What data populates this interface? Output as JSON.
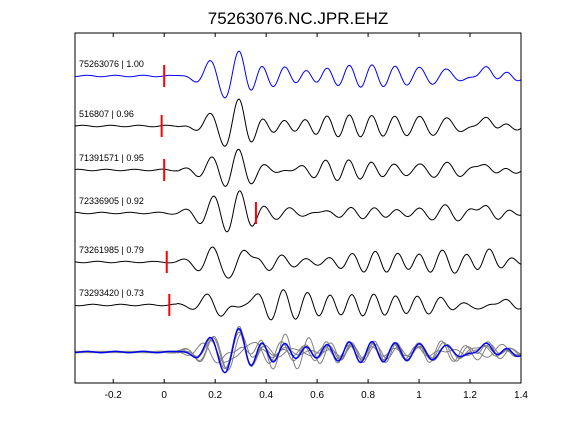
{
  "chart_data": {
    "type": "line",
    "title": "75263076.NC.JPR.EHZ",
    "xlabel": "",
    "ylabel": "",
    "xlim": [
      -0.35,
      1.4
    ],
    "x_ticks": [
      -0.2,
      0,
      0.2,
      0.4,
      0.6,
      0.8,
      1,
      1.2,
      1.4
    ],
    "x_tick_labels": [
      "-0.2",
      "0",
      "0.2",
      "0.4",
      "0.6",
      "0.8",
      "1",
      "1.2",
      "1.4"
    ],
    "grid": false,
    "colors": {
      "reference_trace": "#0000ff",
      "correlated_trace": "#000000",
      "overlay_trace": "#808080",
      "pick_marker": "#ff0000"
    },
    "traces": [
      {
        "label": "75263076 | 1.00",
        "pick_time": 0.0,
        "shift": 0.0,
        "color": "reference"
      },
      {
        "label": "516807 | 0.96",
        "pick_time": -0.01,
        "shift": 0.0,
        "color": "correlated"
      },
      {
        "label": "71391571 | 0.95",
        "pick_time": 0.0,
        "shift": 0.0,
        "color": "correlated"
      },
      {
        "label": "72336905 | 0.92",
        "pick_time": 0.36,
        "shift": 0.0,
        "color": "correlated"
      },
      {
        "label": "73261985 | 0.79",
        "pick_time": 0.01,
        "shift": 0.0,
        "color": "correlated"
      },
      {
        "label": "73293420 | 0.73",
        "pick_time": 0.02,
        "shift": 0.0,
        "color": "correlated"
      }
    ],
    "stack_panel": {
      "description_shown": false,
      "overlay_count": 6
    }
  }
}
